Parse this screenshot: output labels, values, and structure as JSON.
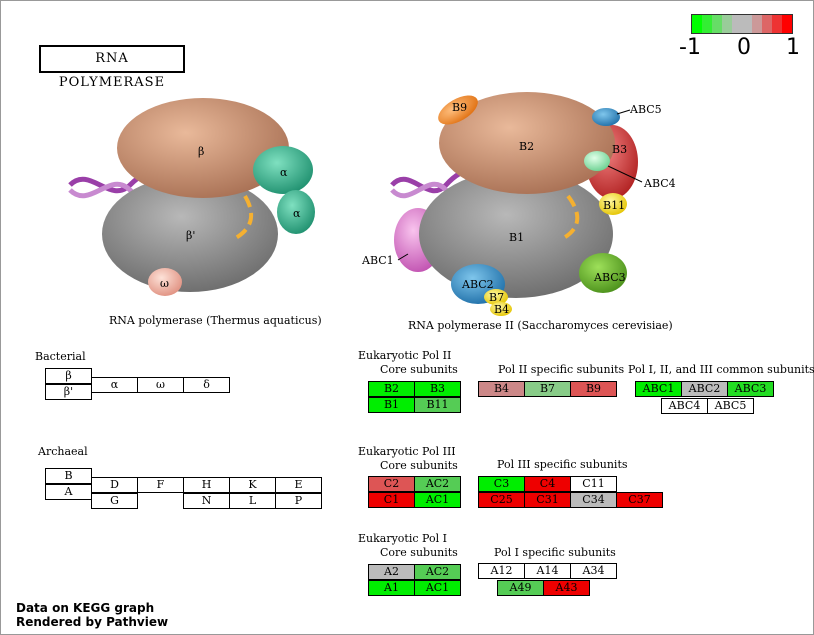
{
  "title": "RNA  POLYMERASE",
  "legend": {
    "labels": [
      "-1",
      "0",
      "1"
    ],
    "colors": [
      "#00ff00",
      "#33ee33",
      "#66dd66",
      "#99cc99",
      "#bbbbbb",
      "#cc9999",
      "#dd6666",
      "#ee3333",
      "#ff0000"
    ]
  },
  "captions": {
    "bacterial": "RNA polymerase (Thermus aquaticus)",
    "yeast": "RNA polymerase II (Saccharomyces cerevisiae)"
  },
  "bact_diagram": {
    "beta": "β",
    "beta_prime": "β'",
    "alpha1": "α",
    "alpha2": "α",
    "omega": "ω"
  },
  "yeast_diagram": {
    "b9": "B9",
    "b2": "B2",
    "abc5": "ABC5",
    "b3": "B3",
    "abc4": "ABC4",
    "b11": "B11",
    "b1": "B1",
    "abc1": "ABC1",
    "abc3": "ABC3",
    "abc2": "ABC2",
    "b7": "B7",
    "b4": "B4"
  },
  "sections": {
    "bacterial": "Bacterial",
    "archaeal": "Archaeal",
    "pol2": "Eukaryotic Pol II",
    "pol2_core": "Core subunits",
    "pol2_specific": "Pol II specific subunits",
    "common": "Pol I, II, and III common subunits",
    "pol3": "Eukaryotic Pol III",
    "pol3_core": "Core subunits",
    "pol3_specific": "Pol III specific subunits",
    "pol1": "Eukaryotic Pol I",
    "pol1_core": "Core subunits",
    "pol1_specific": "Pol I specific subunits"
  },
  "bacterial_table": {
    "b": "β",
    "bp": "β'",
    "alpha": "α",
    "omega": "ω",
    "delta": "δ"
  },
  "archaeal_table": {
    "b": "B",
    "a": "A",
    "d": "D",
    "g": "G",
    "f": "F",
    "h": "H",
    "n": "N",
    "k": "K",
    "l": "L",
    "e": "E",
    "p": "P"
  },
  "pol2_core": [
    {
      "label": "B2",
      "color": "#00ee00"
    },
    {
      "label": "B3",
      "color": "#00ee00"
    },
    {
      "label": "B1",
      "color": "#00ee00"
    },
    {
      "label": "B11",
      "color": "#55cc55"
    }
  ],
  "pol2_specific": [
    {
      "label": "B4",
      "color": "#cc8888"
    },
    {
      "label": "B7",
      "color": "#88cc88"
    },
    {
      "label": "B9",
      "color": "#dd5555"
    }
  ],
  "common": [
    {
      "label": "ABC1",
      "color": "#00ee00"
    },
    {
      "label": "ABC2",
      "color": "#bbbbbb"
    },
    {
      "label": "ABC3",
      "color": "#22dd22"
    },
    {
      "label": "ABC4",
      "color": "#ffffff"
    },
    {
      "label": "ABC5",
      "color": "#ffffff"
    }
  ],
  "pol3_core": [
    {
      "label": "C2",
      "color": "#dd5555"
    },
    {
      "label": "AC2",
      "color": "#55cc55"
    },
    {
      "label": "C1",
      "color": "#ee0000"
    },
    {
      "label": "AC1",
      "color": "#00ee00"
    }
  ],
  "pol3_specific": [
    {
      "label": "C3",
      "color": "#00ee00"
    },
    {
      "label": "C4",
      "color": "#ee0000"
    },
    {
      "label": "C11",
      "color": "#ffffff"
    },
    {
      "label": "C25",
      "color": "#ee0000"
    },
    {
      "label": "C31",
      "color": "#ee0000"
    },
    {
      "label": "C34",
      "color": "#bbbbbb"
    },
    {
      "label": "C37",
      "color": "#ee0000"
    }
  ],
  "pol1_core": [
    {
      "label": "A2",
      "color": "#bbbbbb"
    },
    {
      "label": "AC2",
      "color": "#55cc55"
    },
    {
      "label": "A1",
      "color": "#00ee00"
    },
    {
      "label": "AC1",
      "color": "#00ee00"
    }
  ],
  "pol1_specific": [
    {
      "label": "A12",
      "color": "#ffffff"
    },
    {
      "label": "A14",
      "color": "#ffffff"
    },
    {
      "label": "A34",
      "color": "#ffffff"
    },
    {
      "label": "A49",
      "color": "#55cc55"
    },
    {
      "label": "A43",
      "color": "#ee0000"
    }
  ],
  "footer": {
    "line1": "Data on KEGG graph",
    "line2": "Rendered by Pathview"
  }
}
